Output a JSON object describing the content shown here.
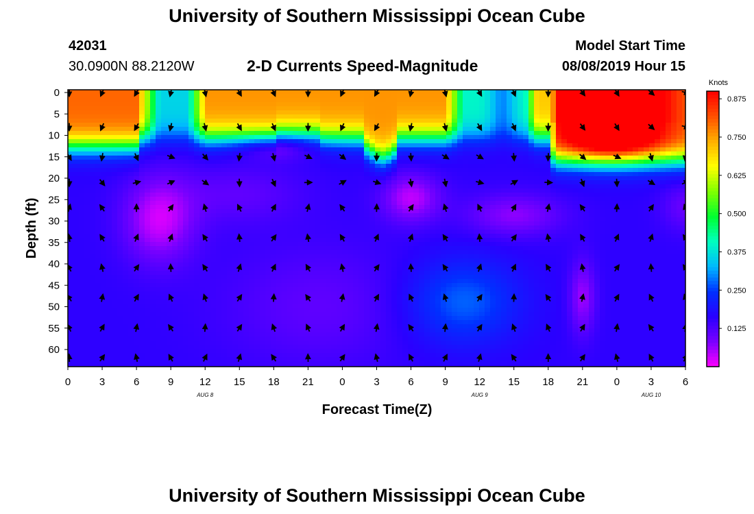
{
  "header": {
    "title": "University of Southern Mississippi Ocean Cube",
    "footer_title": "University of Southern Mississippi Ocean Cube",
    "station_id": "42031",
    "station_coords": "30.0900N 88.2120W",
    "model_start_label": "Model Start Time",
    "model_start_value": "08/08/2019 Hour 15"
  },
  "chart_data": {
    "type": "heatmap",
    "title": "2-D Currents Speed-Magnitude",
    "xlabel": "Forecast Time(Z)",
    "ylabel": "Depth (ft)",
    "x_ticks": [
      "0",
      "3",
      "6",
      "9",
      "12",
      "15",
      "18",
      "21",
      "0",
      "3",
      "6",
      "9",
      "12",
      "15",
      "18",
      "21",
      "0",
      "3",
      "6"
    ],
    "x_hours": [
      0,
      54
    ],
    "date_labels": [
      {
        "label": "AUG 8",
        "hour": 12
      },
      {
        "label": "AUG 9",
        "hour": 36
      },
      {
        "label": "AUG 10",
        "hour": 51
      }
    ],
    "y_ticks": [
      "0",
      "5",
      "10",
      "15",
      "20",
      "25",
      "30",
      "35",
      "40",
      "45",
      "50",
      "55",
      "60"
    ],
    "y_range": [
      0,
      64
    ],
    "colorbar": {
      "unit": "Knots",
      "ticks": [
        "0.125",
        "0.250",
        "0.375",
        "0.500",
        "0.625",
        "0.750",
        "0.875"
      ],
      "range": [
        0,
        0.9
      ],
      "colors": [
        "#ff00ff",
        "#7a00ff",
        "#2a00ff",
        "#0030ff",
        "#00b8ff",
        "#00ffc0",
        "#00ff30",
        "#80ff00",
        "#ffff00",
        "#ffb000",
        "#ff5000",
        "#ff0000"
      ]
    },
    "arrow_rows_depth": [
      0,
      8,
      15,
      21,
      27,
      34,
      41,
      48,
      55,
      62
    ],
    "arrow_cols_hour": [
      0,
      3,
      6,
      9,
      12,
      15,
      18,
      21,
      24,
      27,
      30,
      33,
      36,
      39,
      42,
      45,
      48,
      51,
      54
    ]
  }
}
